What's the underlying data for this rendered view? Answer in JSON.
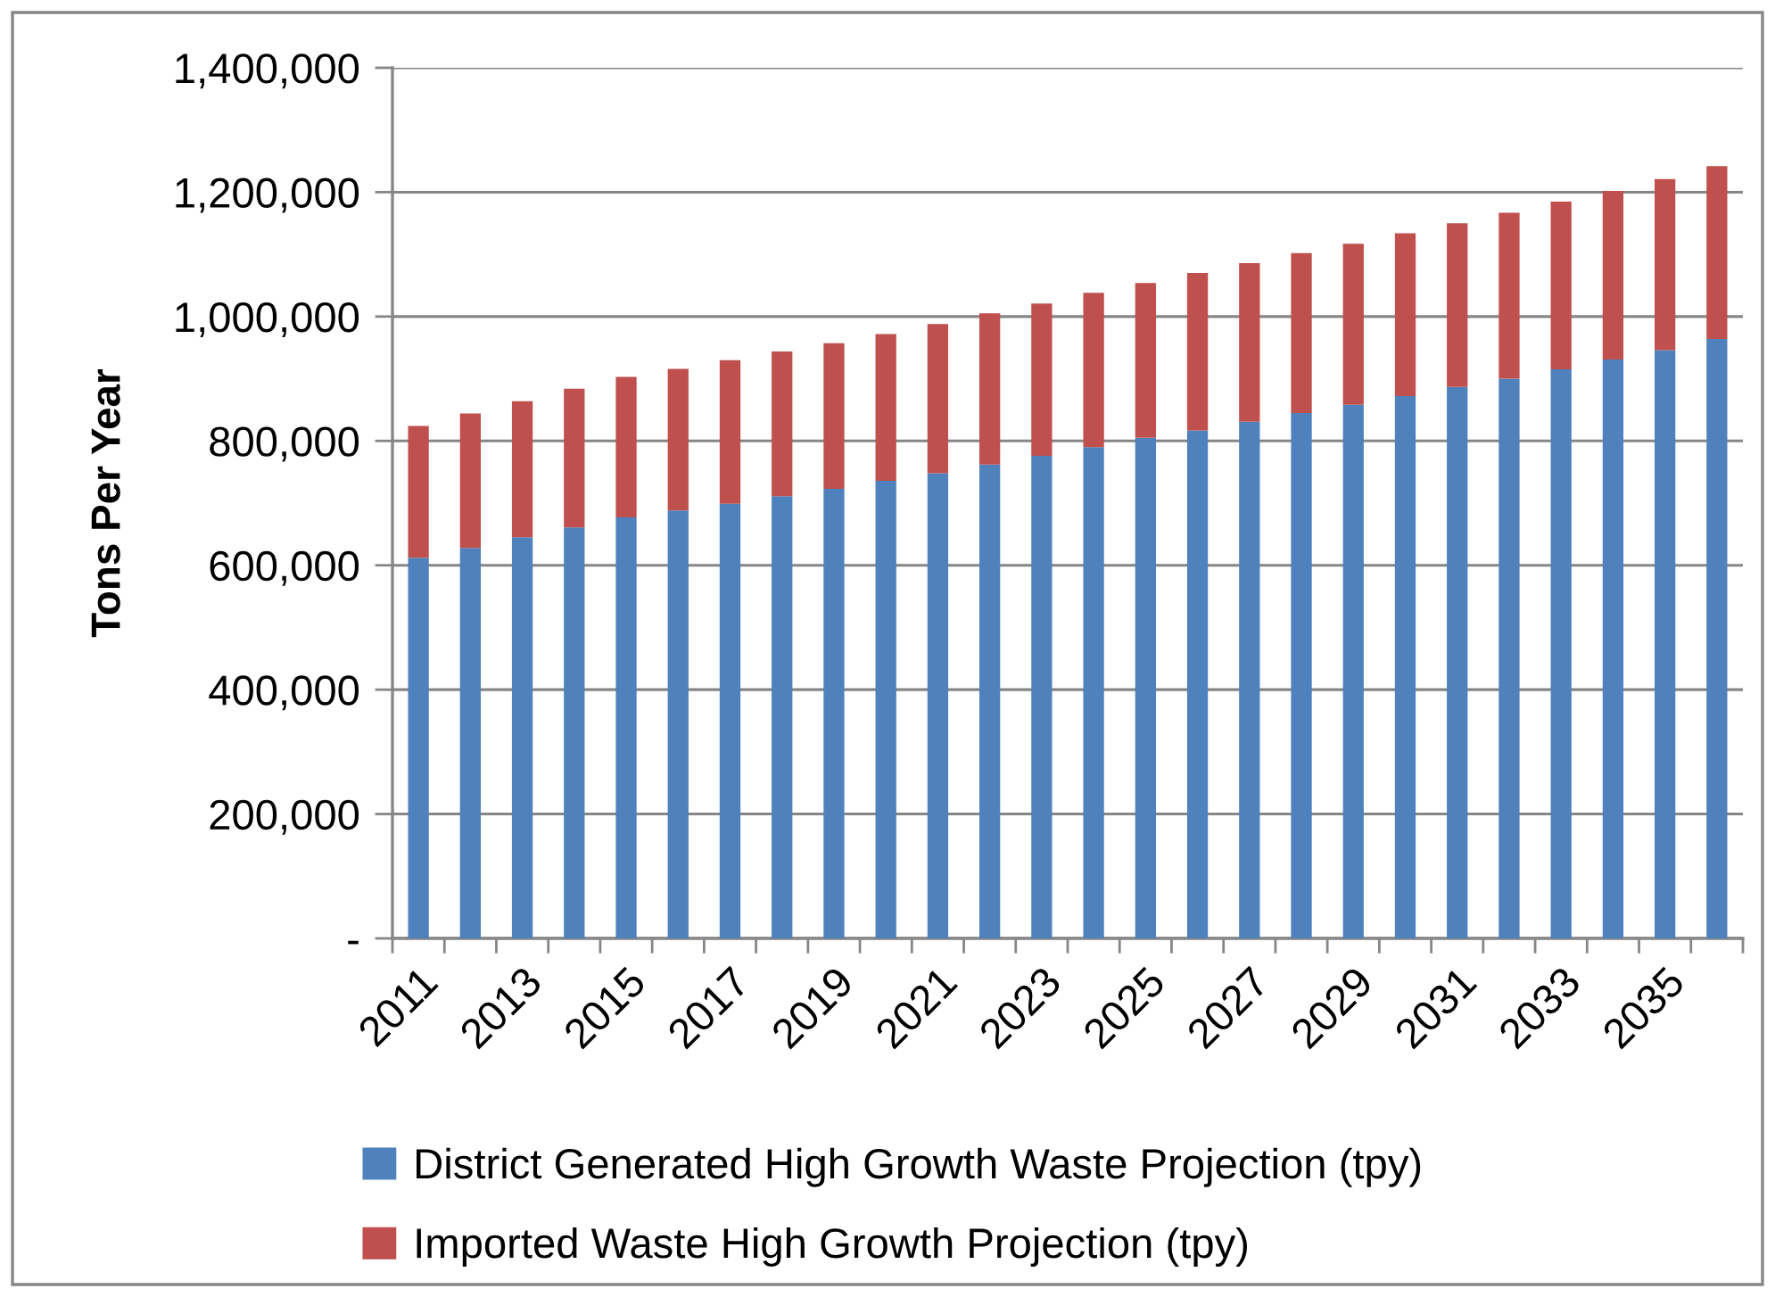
{
  "chart_data": {
    "type": "bar",
    "stacked": true,
    "ylabel": "Tons Per Year",
    "categories": [
      "2011",
      null,
      "2013",
      null,
      "2015",
      null,
      "2017",
      null,
      "2019",
      null,
      "2021",
      null,
      "2023",
      null,
      "2025",
      null,
      "2027",
      null,
      "2029",
      null,
      "2031",
      null,
      "2033",
      null,
      "2035",
      null
    ],
    "series": [
      {
        "name": "District Generated High Growth Waste Projection (tpy)",
        "color": "#4f81bd",
        "values": [
          612000,
          628000,
          645000,
          661000,
          677000,
          688000,
          699000,
          711000,
          723000,
          736000,
          748000,
          762000,
          776000,
          790000,
          805000,
          817000,
          831000,
          845000,
          858000,
          872000,
          887000,
          900000,
          915000,
          931000,
          946000,
          964000
        ]
      },
      {
        "name": "Imported Waste High Growth Projection (tpy)",
        "color": "#c0504d",
        "values": [
          212000,
          216000,
          219000,
          223000,
          226000,
          228000,
          231000,
          233000,
          234000,
          236000,
          240000,
          243000,
          245000,
          248000,
          249000,
          253000,
          255000,
          257000,
          259000,
          262000,
          263000,
          267000,
          270000,
          271000,
          275000,
          278000
        ]
      }
    ],
    "ylim": [
      0,
      1400000
    ],
    "yticks": [
      {
        "value": 0,
        "label": "-"
      },
      {
        "value": 200000,
        "label": "200,000"
      },
      {
        "value": 400000,
        "label": "400,000"
      },
      {
        "value": 600000,
        "label": "600,000"
      },
      {
        "value": 800000,
        "label": "800,000"
      },
      {
        "value": 1000000,
        "label": "1,000,000"
      },
      {
        "value": 1200000,
        "label": "1,200,000"
      },
      {
        "value": 1400000,
        "label": "1,400,000"
      }
    ],
    "grid": "y",
    "legend": "bottom"
  }
}
